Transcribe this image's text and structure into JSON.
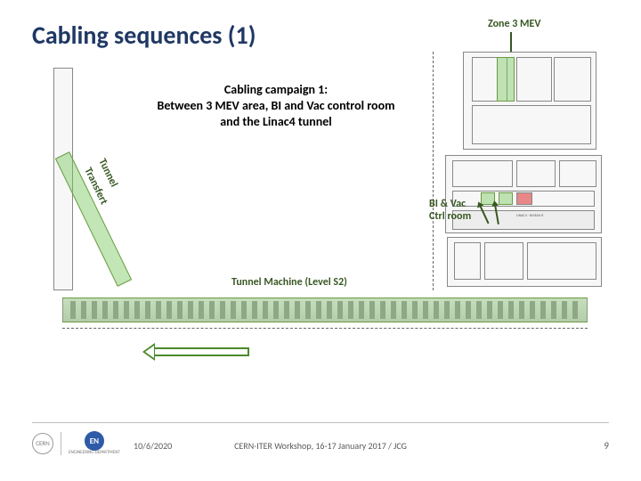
{
  "title": "Cabling sequences (1)",
  "zone_label": "Zone 3 MEV",
  "campaign": {
    "line1": "Cabling campaign 1:",
    "line2": "Between 3 MEV area, BI and Vac control room",
    "line3": "and the Linac4 tunnel"
  },
  "labels": {
    "tunnel": "Tunnel",
    "transfert": "Transfert",
    "bi_vac_l1": "BI & Vac",
    "bi_vac_l2": "Ctrl room",
    "tunnel_machine": "Tunnel Machine (Level S2)"
  },
  "footer": {
    "date": "10/6/2020",
    "center": "CERN-ITER Workshop, 16-17 January 2017 / JCG",
    "page": "9",
    "en_label": "EN",
    "en_sub": "ENGINEERING DEPARTMENT"
  },
  "colors": {
    "title": "#1f3864",
    "accent_green": "#385723",
    "green_fill": "rgba(120,200,90,0.45)",
    "footer_text": "#595959"
  }
}
